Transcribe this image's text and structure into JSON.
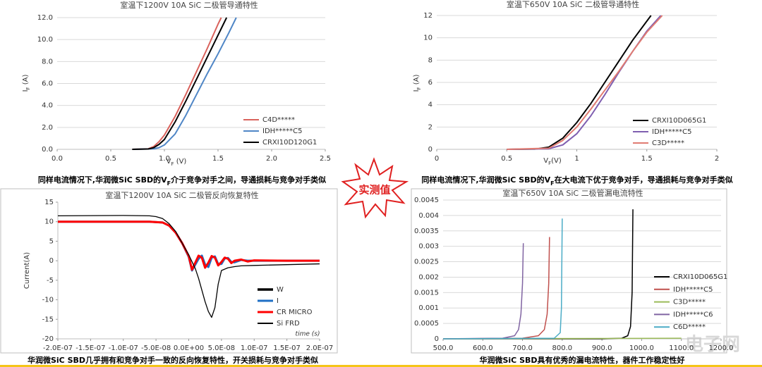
{
  "chart_data": [
    {
      "type": "line",
      "title": "室温下1200V 10A SiC 二极管导通特性",
      "x_label": {
        "main": "V",
        "sub": "F",
        "rest": " (V)"
      },
      "y_label": {
        "main": "I",
        "sub": "F",
        "rest": " (A)"
      },
      "xlim": [
        0,
        2.5
      ],
      "ylim": [
        0,
        12
      ],
      "xticks": [
        {
          "value": 0,
          "label": "0.0"
        },
        0.5,
        {
          "value": 1,
          "label": "1.0"
        },
        1.5,
        {
          "value": 2,
          "label": "2.0"
        },
        2.5
      ],
      "yticks": [
        {
          "value": 0,
          "label": "0.0"
        },
        {
          "value": 2,
          "label": "2.0"
        },
        {
          "value": 4,
          "label": "4.0"
        },
        {
          "value": 6,
          "label": "6.0"
        },
        {
          "value": 8,
          "label": "8.0"
        },
        {
          "value": 10,
          "label": "10.0"
        },
        {
          "value": 12,
          "label": "12.0"
        }
      ],
      "grid": true,
      "legend": "lower right",
      "series": [
        {
          "name": "C4D*****",
          "color": "#d9625c",
          "x": [
            0.7,
            0.85,
            0.9,
            0.95,
            1.0,
            1.1,
            1.2,
            1.3,
            1.4,
            1.5,
            1.53
          ],
          "values": [
            0,
            0.05,
            0.25,
            0.7,
            1.3,
            3.0,
            5.0,
            7.1,
            9.2,
            11.4,
            12
          ]
        },
        {
          "name": "IDH*****C5",
          "color": "#4f86c6",
          "x": [
            0.7,
            0.9,
            0.95,
            1.0,
            1.1,
            1.2,
            1.3,
            1.4,
            1.5,
            1.6,
            1.67
          ],
          "values": [
            0,
            0.05,
            0.15,
            0.4,
            1.4,
            3.1,
            5.0,
            6.9,
            8.7,
            10.6,
            12
          ]
        },
        {
          "name": "CRXI10D120G1",
          "color": "#000000",
          "x": [
            0.7,
            0.85,
            0.9,
            0.95,
            1.0,
            1.1,
            1.2,
            1.3,
            1.4,
            1.5,
            1.58
          ],
          "values": [
            0,
            0.03,
            0.15,
            0.45,
            0.9,
            2.5,
            4.4,
            6.4,
            8.4,
            10.4,
            12
          ]
        }
      ]
    },
    {
      "type": "line",
      "title": "室温下650V 10A SiC 二极管导通特性",
      "x_label": {
        "main": "V",
        "sub": "F",
        "rest": "(V)"
      },
      "y_label": {
        "main": "I",
        "sub": "F",
        "rest": " (A)"
      },
      "xlim": [
        0,
        2
      ],
      "ylim": [
        0,
        12
      ],
      "xticks": [
        0,
        0.5,
        1,
        1.5,
        2
      ],
      "yticks": [
        0,
        2,
        4,
        6,
        8,
        10,
        12
      ],
      "grid": true,
      "legend": "lower right",
      "series": [
        {
          "name": "CRXI10D065G1",
          "color": "#000000",
          "x": [
            0.5,
            0.7,
            0.8,
            0.9,
            1.0,
            1.1,
            1.2,
            1.3,
            1.4,
            1.53
          ],
          "values": [
            0,
            0.02,
            0.2,
            1.0,
            2.4,
            4.1,
            6.0,
            7.9,
            9.8,
            12
          ]
        },
        {
          "name": "IDH*****C5",
          "color": "#7f5fb0",
          "x": [
            0.5,
            0.8,
            0.9,
            1.0,
            1.1,
            1.2,
            1.3,
            1.4,
            1.5,
            1.6
          ],
          "values": [
            0,
            0.05,
            0.4,
            1.4,
            3.0,
            4.9,
            6.9,
            8.8,
            10.6,
            12
          ]
        },
        {
          "name": "C3D*****",
          "color": "#e07b72",
          "x": [
            0.5,
            0.8,
            0.9,
            1.0,
            1.1,
            1.2,
            1.3,
            1.4,
            1.5,
            1.61
          ],
          "values": [
            0,
            0.1,
            0.8,
            2.0,
            3.6,
            5.3,
            7.0,
            8.8,
            10.5,
            12
          ]
        }
      ]
    },
    {
      "type": "line",
      "title": "室温下1200V 10A SiC 二极管反向恢复特性",
      "y_label": "Current(A)",
      "annotation": "time (s)",
      "xlim": [
        -2e-07,
        2e-07
      ],
      "ylim": [
        -20,
        15
      ],
      "xticks": [
        {
          "value": -2e-07,
          "label": "-2.0E-07"
        },
        {
          "value": -1.5e-07,
          "label": "-1.5E-07"
        },
        {
          "value": -1e-07,
          "label": "-1.0E-07"
        },
        {
          "value": -5e-08,
          "label": "-5.0E-08"
        },
        {
          "value": 0,
          "label": "0.0E+00"
        },
        {
          "value": 5e-08,
          "label": "5.0E-08"
        },
        {
          "value": 1e-07,
          "label": "1.0E-07"
        },
        {
          "value": 1.5e-07,
          "label": "1.5E-07"
        },
        {
          "value": 2e-07,
          "label": "2.0E-07"
        }
      ],
      "yticks": [
        -20,
        -15,
        -10,
        -5,
        0,
        5,
        10,
        15
      ],
      "grid": false,
      "legend": "lower right",
      "series": [
        {
          "name": "W",
          "color": "#000000",
          "x": [],
          "values": []
        },
        {
          "name": "I",
          "color": "#1f6fc5",
          "x": [
            -2e-07,
            -1e-07,
            -6e-08,
            -4e-08,
            -3e-08,
            -2e-08,
            -1e-08,
            0,
            5e-09,
            1e-08,
            1.5e-08,
            2e-08,
            2.5e-08,
            3e-08,
            3.5e-08,
            4e-08,
            4.5e-08,
            5e-08,
            5.5e-08,
            6e-08,
            6.5e-08,
            7e-08,
            8e-08,
            9e-08,
            1e-07,
            1.5e-07,
            2e-07
          ],
          "values": [
            10,
            10,
            10,
            9.8,
            9,
            7.2,
            4.5,
            1.0,
            -2.5,
            -1.0,
            0.5,
            1.3,
            -1.0,
            -1.6,
            0.8,
            1.1,
            -0.9,
            -0.8,
            0.6,
            0.7,
            -0.3,
            -0.4,
            0.2,
            0,
            0,
            0,
            0
          ]
        },
        {
          "name": "CR MICRO",
          "color": "#ff0000",
          "x": [
            -2e-07,
            -1e-07,
            -6e-08,
            -4e-08,
            -3e-08,
            -2e-08,
            -1e-08,
            0,
            5e-09,
            1e-08,
            1.5e-08,
            2e-08,
            2.5e-08,
            3e-08,
            3.5e-08,
            4e-08,
            4.5e-08,
            5e-08,
            5.5e-08,
            6e-08,
            6.5e-08,
            7e-08,
            8e-08,
            9e-08,
            1e-07,
            1.5e-07,
            2e-07
          ],
          "values": [
            10,
            10,
            10,
            9.8,
            9,
            7.2,
            4.5,
            1.2,
            -2.3,
            -0.5,
            1.3,
            0.8,
            -1.8,
            -0.5,
            1.2,
            0.8,
            -1.2,
            -0.3,
            0.8,
            0.5,
            -0.6,
            0,
            0.3,
            -0.2,
            0.1,
            0,
            0
          ]
        },
        {
          "name": "Si FRD",
          "color": "#000000",
          "x": [
            -2e-07,
            -1e-07,
            -6e-08,
            -5e-08,
            -4e-08,
            -3e-08,
            -2e-08,
            -1e-08,
            0,
            1e-08,
            1.5e-08,
            2e-08,
            2.5e-08,
            3e-08,
            3.5e-08,
            4e-08,
            4.5e-08,
            5e-08,
            6e-08,
            7e-08,
            8e-08,
            1e-07,
            1.5e-07,
            2e-07
          ],
          "values": [
            11.5,
            11.6,
            11.5,
            11.3,
            10.8,
            9.5,
            7.5,
            4.5,
            1.5,
            -2,
            -4.5,
            -7.5,
            -10.5,
            -13,
            -14.5,
            -12,
            -6,
            -2.5,
            -1.8,
            -1.5,
            -1.3,
            -1.2,
            -1,
            -0.8
          ]
        }
      ]
    },
    {
      "type": "line",
      "title": "室温下650V 10A SiC 二极管漏电流特性",
      "xlim": [
        500,
        1200
      ],
      "ylim": [
        0,
        0.0045
      ],
      "xticks": [
        {
          "value": 500,
          "label": "500.0"
        },
        {
          "value": 600,
          "label": "600.0"
        },
        {
          "value": 700,
          "label": "700.0"
        },
        {
          "value": 800,
          "label": "800.0"
        },
        {
          "value": 900,
          "label": "900.0"
        },
        {
          "value": 1000,
          "label": "1000.0"
        },
        {
          "value": 1100,
          "label": "1100.0"
        },
        {
          "value": 1200,
          "label": "1200.0"
        }
      ],
      "yticks": [
        0,
        0.0005,
        0.001,
        0.0015,
        0.002,
        0.0025,
        0.003,
        0.0035,
        0.004,
        0.0045
      ],
      "grid": true,
      "legend": "lower right",
      "series": [
        {
          "name": "CRXI10D065G1",
          "color": "#000000",
          "x": [
            500,
            900,
            950,
            965,
            972,
            976,
            978
          ],
          "values": [
            0,
            0,
            2e-05,
            0.0001,
            0.0004,
            0.0015,
            0.0042
          ]
        },
        {
          "name": "IDH*****C5",
          "color": "#c0504d",
          "x": [
            500,
            700,
            740,
            755,
            762,
            766,
            768
          ],
          "values": [
            0,
            2e-05,
            0.0001,
            0.0003,
            0.0008,
            0.0018,
            0.0033
          ]
        },
        {
          "name": "C3D*****",
          "color": "#9bbb59",
          "x": [
            500,
            1100
          ],
          "values": [
            0,
            2e-05
          ]
        },
        {
          "name": "IDH*****C6",
          "color": "#8064a2",
          "x": [
            500,
            650,
            680,
            690,
            696,
            700,
            702
          ],
          "values": [
            0,
            2e-05,
            0.0001,
            0.0003,
            0.0008,
            0.0018,
            0.0031
          ]
        },
        {
          "name": "C6D*****",
          "color": "#4bacc6",
          "x": [
            500,
            780,
            795,
            798,
            800
          ],
          "values": [
            0,
            2e-05,
            0.0002,
            0.001,
            0.0039
          ]
        }
      ]
    }
  ],
  "captions": [
    {
      "before": "同样电流情况下,华润微SiC SBD的V",
      "sub": "F",
      "after": "介于竞争对手之间，导通损耗与竞争对手类似"
    },
    {
      "before": "同样电流情况下,华润微SiC SBD的V",
      "sub": "F",
      "after": "在大电流下优于竞争对手，导通损耗与竞争对手类似"
    },
    "华润微SiC SBD几乎拥有和竞争对手一致的反向恢复特性，开关损耗与竞争对手类似",
    "华润微SiC SBD具有优秀的漏电流特性，器件工作稳定性好"
  ],
  "badge": "实测值",
  "watermark": "电子网"
}
